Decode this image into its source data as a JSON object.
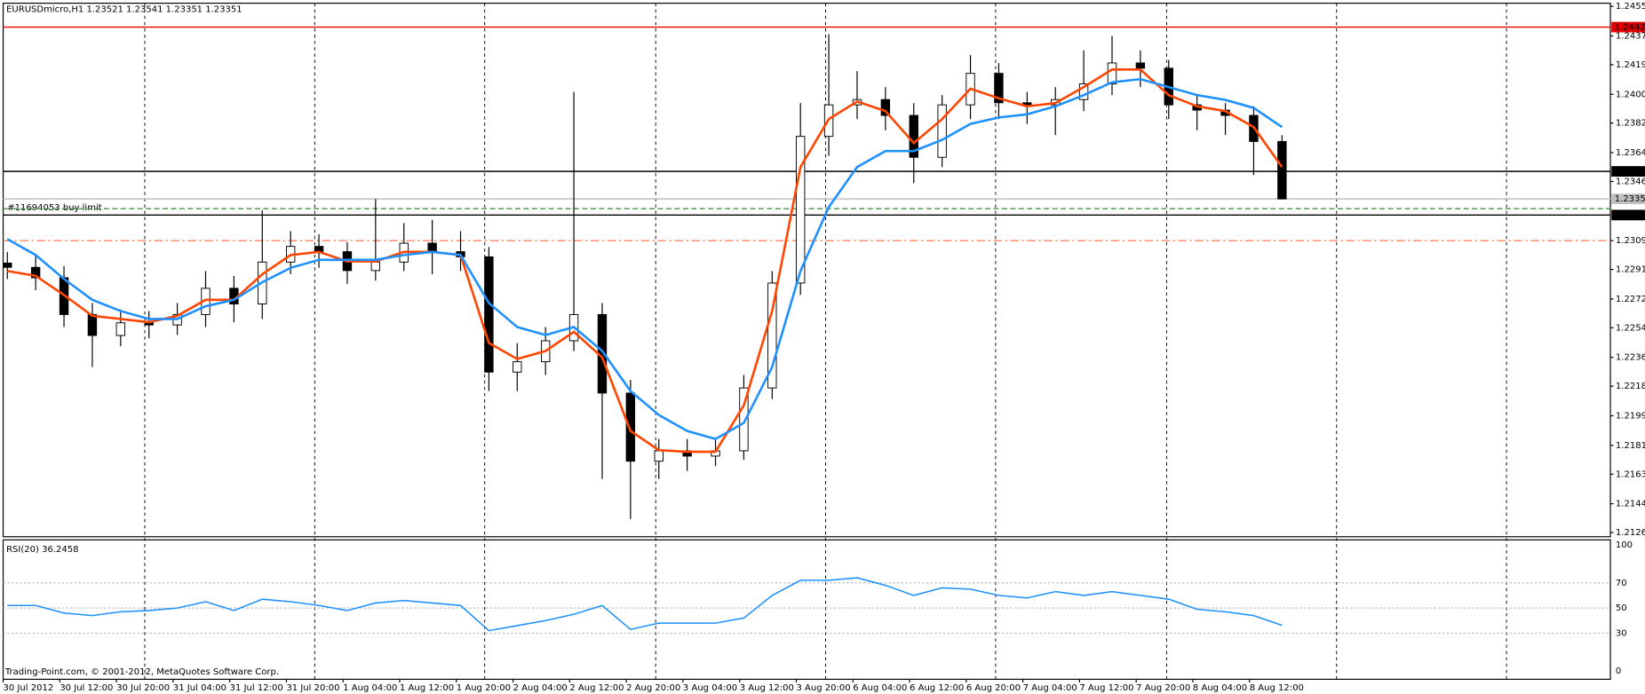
{
  "chart_data": {
    "type": "candlestick",
    "header": "EURUSDmicro,H1  1.23521 1.23541 1.23351 1.23351",
    "order_label": "#11694053 buy limit",
    "copyright": "Trading-Point.com, © 2001-2012, MetaQuotes Software Corp.",
    "categories": [
      "30 Jul 2012",
      null,
      "30 Jul 12:00",
      null,
      "30 Jul 20:00",
      null,
      "31 Jul 04:00",
      null,
      "31 Jul 12:00",
      null,
      "31 Jul 20:00",
      null,
      "1 Aug 04:00",
      null,
      "1 Aug 12:00",
      null,
      "1 Aug 20:00",
      null,
      "2 Aug 04:00",
      null,
      "2 Aug 12:00",
      null,
      "2 Aug 20:00",
      null,
      "3 Aug 04:00",
      null,
      "3 Aug 12:00",
      null,
      "3 Aug 20:00",
      null,
      "6 Aug 04:00",
      null,
      "6 Aug 12:00",
      null,
      "6 Aug 20:00",
      null,
      "7 Aug 04:00",
      null,
      "7 Aug 12:00",
      null,
      "7 Aug 20:00",
      null,
      "8 Aug 04:00",
      null,
      "8 Aug 12:00",
      null
    ],
    "open": [
      1.2295,
      1.22923,
      1.22858,
      1.22628,
      1.22497,
      1.22576,
      1.22563,
      1.22628,
      1.22792,
      1.22694,
      1.22956,
      1.23054,
      1.23021,
      1.22903,
      1.22956,
      1.23074,
      1.23021,
      1.22989,
      1.22268,
      1.22333,
      1.22464,
      1.22628,
      1.22137,
      1.21711,
      1.21776,
      1.21743,
      1.21776,
      1.22169,
      1.22825,
      1.23742,
      1.23939,
      1.23972,
      1.23873,
      1.23611,
      1.23939,
      1.24136,
      1.23952,
      1.23939,
      1.23972,
      1.2407,
      1.24201,
      1.24168,
      1.23939,
      1.23906,
      1.23873,
      1.2371
    ],
    "high": [
      1.2302,
      1.23,
      1.2293,
      1.227,
      1.2266,
      1.2265,
      1.227,
      1.229,
      1.2287,
      1.2328,
      1.2315,
      1.2313,
      1.2308,
      1.2335,
      1.232,
      1.2322,
      1.2315,
      1.2305,
      1.2245,
      1.2255,
      1.2402,
      1.227,
      1.2222,
      1.2185,
      1.2185,
      1.2185,
      1.2225,
      1.229,
      1.2395,
      1.2438,
      1.2415,
      1.2405,
      1.2395,
      1.24,
      1.2425,
      1.242,
      1.2402,
      1.2405,
      1.2428,
      1.2437,
      1.2428,
      1.2422,
      1.24,
      1.2395,
      1.2393,
      1.2375
    ],
    "low": [
      1.2285,
      1.2278,
      1.2255,
      1.223,
      1.2243,
      1.2248,
      1.225,
      1.2255,
      1.2258,
      1.226,
      1.2288,
      1.2292,
      1.2282,
      1.2284,
      1.229,
      1.2288,
      1.229,
      1.2215,
      1.2215,
      1.2225,
      1.224,
      1.216,
      1.2135,
      1.216,
      1.2165,
      1.2168,
      1.2172,
      1.221,
      1.2275,
      1.2362,
      1.2385,
      1.2378,
      1.2345,
      1.2355,
      1.2385,
      1.2385,
      1.2382,
      1.2375,
      1.239,
      1.24,
      1.2405,
      1.2385,
      1.2378,
      1.2375,
      1.235,
      1.2335
    ],
    "close": [
      1.22923,
      1.22858,
      1.22628,
      1.22497,
      1.22576,
      1.22563,
      1.22628,
      1.22792,
      1.22694,
      1.22956,
      1.23054,
      1.23021,
      1.22903,
      1.22956,
      1.23074,
      1.23021,
      1.22989,
      1.22268,
      1.22333,
      1.22464,
      1.22628,
      1.22137,
      1.21711,
      1.21776,
      1.21743,
      1.21776,
      1.22169,
      1.22825,
      1.23742,
      1.23939,
      1.23972,
      1.23873,
      1.23611,
      1.23939,
      1.24136,
      1.23952,
      1.23939,
      1.23972,
      1.2407,
      1.24201,
      1.24168,
      1.23939,
      1.23906,
      1.23873,
      1.2371,
      1.23351
    ],
    "series": [
      {
        "color": "#ff4500",
        "values": [
          1.229,
          1.2287,
          1.2275,
          1.2262,
          1.226,
          1.2258,
          1.2262,
          1.2272,
          1.2272,
          1.2288,
          1.23,
          1.2302,
          1.2296,
          1.2296,
          1.2302,
          1.2302,
          1.23,
          1.2245,
          1.2235,
          1.224,
          1.2252,
          1.2236,
          1.219,
          1.2178,
          1.2177,
          1.2177,
          1.2206,
          1.2265,
          1.2355,
          1.2385,
          1.2396,
          1.239,
          1.237,
          1.2385,
          1.2404,
          1.2398,
          1.2393,
          1.2395,
          1.2405,
          1.2416,
          1.2416,
          1.24,
          1.2393,
          1.239,
          1.238,
          1.2355
        ]
      },
      {
        "color": "#1e90ff",
        "values": [
          1.231,
          1.23,
          1.2285,
          1.2272,
          1.2265,
          1.226,
          1.226,
          1.2268,
          1.2272,
          1.2283,
          1.2292,
          1.2297,
          1.2297,
          1.2297,
          1.23,
          1.2302,
          1.23,
          1.227,
          1.2255,
          1.225,
          1.2255,
          1.224,
          1.2215,
          1.22,
          1.219,
          1.2185,
          1.2195,
          1.223,
          1.229,
          1.233,
          1.2355,
          1.2365,
          1.2365,
          1.2372,
          1.2382,
          1.2386,
          1.2388,
          1.2393,
          1.24,
          1.2408,
          1.241,
          1.2405,
          1.24,
          1.2397,
          1.2392,
          1.238
        ]
      }
    ],
    "levels": [
      {
        "value": 1.24425,
        "color": "#e00000",
        "style": "solid",
        "tag": true
      },
      {
        "value": 1.23523,
        "color": "#000000",
        "style": "solid",
        "tag": true
      },
      {
        "value": 1.23351,
        "color": "#c0c0c0",
        "style": "solid",
        "tag": true
      },
      {
        "value": 1.2329,
        "color": "#2e8b2e",
        "style": "dash",
        "tag": false
      },
      {
        "value": 1.2325,
        "label": "1.23250",
        "color": "#000000",
        "style": "solid",
        "tag": true
      },
      {
        "value": 1.2309,
        "color": "#ff6a3d",
        "style": "dashdot",
        "tag": false
      }
    ],
    "ylim": [
      1.21265,
      1.24555
    ],
    "yticks": [
      1.24555,
      {
        "value": 1.2437,
        "label": "1.24370"
      },
      {
        "value": 1.2419,
        "label": "1.24190"
      },
      1.24005,
      1.23825,
      {
        "value": 1.2364,
        "label": "1.23640"
      },
      {
        "value": 1.2346,
        "label": "1.23460"
      },
      {
        "value": 1.2309,
        "label": "1.23090"
      },
      {
        "value": 1.2291,
        "label": "1.22910"
      },
      1.22725,
      1.22545,
      {
        "value": 1.2236,
        "label": "1.22360"
      },
      {
        "value": 1.2218,
        "label": "1.22180"
      },
      1.21995,
      {
        "value": 1.2181,
        "label": "1.21810"
      },
      {
        "value": 1.2163,
        "label": "1.21630"
      },
      1.21445,
      1.21265
    ],
    "rsi": {
      "label": "RSI(20) 36.2458",
      "color": "#1e90ff",
      "values": [
        52,
        52,
        46,
        44,
        47,
        48,
        50,
        55,
        48,
        57,
        55,
        52,
        48,
        54,
        56,
        54,
        52,
        32,
        36,
        40,
        45,
        52,
        33,
        38,
        38,
        38,
        42,
        60,
        72,
        72,
        74,
        68,
        60,
        66,
        65,
        60,
        58,
        63,
        60,
        63,
        60,
        57,
        49,
        47,
        44,
        36.2458
      ],
      "ylim": [
        0,
        100
      ],
      "yticks": [
        100,
        70,
        50,
        30,
        0
      ],
      "grid": [
        70,
        50,
        30
      ]
    }
  }
}
